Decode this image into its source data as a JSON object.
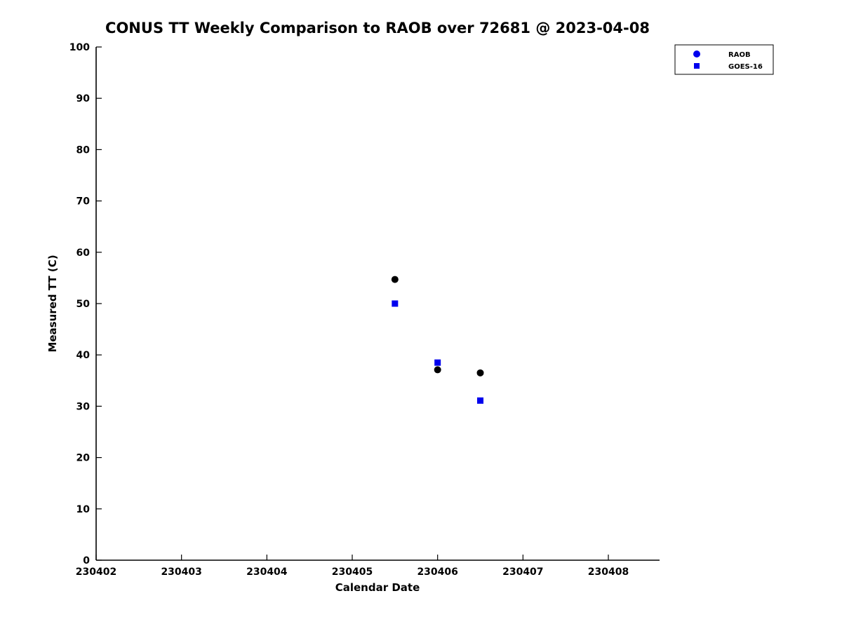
{
  "chart": {
    "title": "CONUS TT Weekly Comparison to RAOB over 72681 @ 2023-04-08",
    "xlabel": "Calendar Date",
    "ylabel": "Measured TT (C)"
  },
  "chart_data": {
    "type": "scatter",
    "title": "CONUS TT Weekly Comparison to RAOB over 72681 @ 2023-04-08",
    "xlabel": "Calendar Date",
    "ylabel": "Measured TT (C)",
    "xlim": [
      230402,
      230408.6
    ],
    "ylim": [
      0,
      100
    ],
    "xticks": [
      230402,
      230403,
      230404,
      230405,
      230406,
      230407,
      230408
    ],
    "yticks": [
      0,
      10,
      20,
      30,
      40,
      50,
      60,
      70,
      80,
      90,
      100
    ],
    "grid": false,
    "legend_position": "top-right",
    "series": [
      {
        "name": "RAOB",
        "marker": "circle",
        "color": "#000000",
        "legend_color": "#0000ee",
        "x": [
          230405.5,
          230406.0,
          230406.5
        ],
        "y": [
          54.7,
          37.1,
          36.5
        ]
      },
      {
        "name": "GOES-16",
        "marker": "square",
        "color": "#0000ee",
        "legend_color": "#0000ee",
        "x": [
          230405.5,
          230406.0,
          230406.5
        ],
        "y": [
          50.0,
          38.5,
          31.1
        ]
      }
    ]
  }
}
